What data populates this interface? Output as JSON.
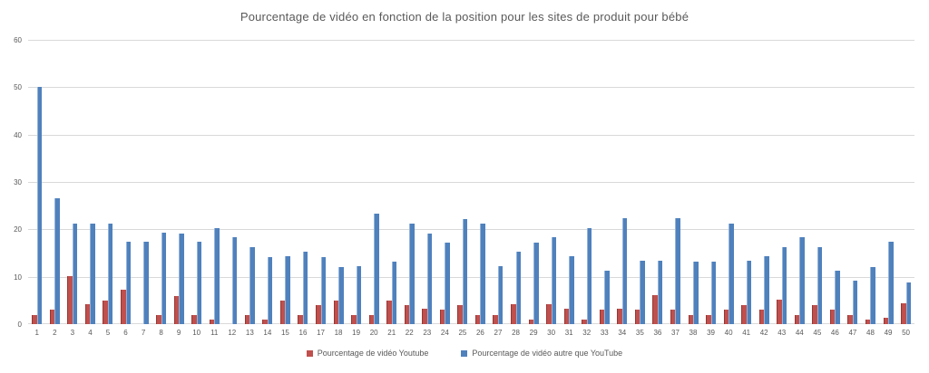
{
  "chart_data": {
    "type": "bar",
    "title": "Pourcentage de vidéo en fonction de la position pour les sites de produit pour bébé",
    "xlabel": "",
    "ylabel": "",
    "ylim": [
      0,
      60
    ],
    "ytick_step": 10,
    "grid": true,
    "legend_position": "bottom",
    "categories": [
      1,
      2,
      3,
      4,
      5,
      6,
      7,
      8,
      9,
      10,
      11,
      12,
      13,
      14,
      15,
      16,
      17,
      18,
      19,
      20,
      21,
      22,
      23,
      24,
      25,
      26,
      27,
      28,
      29,
      30,
      31,
      32,
      33,
      34,
      35,
      36,
      37,
      38,
      39,
      40,
      41,
      42,
      43,
      44,
      45,
      46,
      47,
      48,
      49,
      50
    ],
    "series": [
      {
        "name": "Pourcentage de vidéo Youtube",
        "color": "#C0504D",
        "edge_color": "#953734",
        "values": [
          2,
          3,
          10.2,
          4.2,
          5,
          7.2,
          0,
          2,
          6,
          2,
          1,
          0,
          2,
          1,
          5,
          2,
          4,
          5,
          2,
          2,
          5,
          4,
          3.2,
          3,
          4,
          2,
          2,
          4.2,
          1,
          4.2,
          3.2,
          1,
          3,
          3.2,
          3,
          6.2,
          3,
          2,
          2,
          3,
          4,
          3,
          5.2,
          2,
          4,
          3,
          2,
          1,
          1.3,
          4.4
        ]
      },
      {
        "name": "Pourcentage de vidéo autre que YouTube",
        "color": "#4F81BD",
        "edge_color": "#95B3D7",
        "values": [
          50,
          26.5,
          21.2,
          21.2,
          21.3,
          17.3,
          17.3,
          19.3,
          19.2,
          17.3,
          20.3,
          18.3,
          16.3,
          14.2,
          14.3,
          15.2,
          14.2,
          12,
          12.2,
          23.3,
          13.2,
          21.2,
          19.2,
          17.2,
          22.2,
          21.2,
          12.3,
          15.2,
          17.2,
          18.3,
          14.3,
          20.2,
          11.2,
          22.3,
          13.3,
          13.3,
          22.3,
          13.2,
          13.2,
          21.2,
          13.3,
          14.3,
          16.3,
          18.3,
          16.2,
          11.3,
          9.2,
          12,
          17.3,
          8.7
        ]
      }
    ]
  },
  "colors": {
    "text": "#595959",
    "gridline": "#D9D9D9",
    "background": "#FFFFFF"
  }
}
